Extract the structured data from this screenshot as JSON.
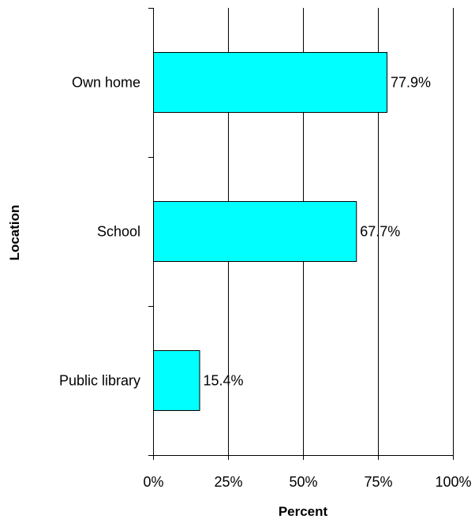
{
  "chart_data": {
    "type": "bar",
    "orientation": "horizontal",
    "categories": [
      "Own home",
      "School",
      "Public library"
    ],
    "values": [
      77.9,
      67.7,
      15.4
    ],
    "data_labels": [
      "77.9%",
      "67.7%",
      "15.4%"
    ],
    "xlabel": "Percent",
    "ylabel": "Location",
    "xlim": [
      0,
      100
    ],
    "x_ticks": [
      0,
      25,
      50,
      75,
      100
    ],
    "x_tick_labels": [
      "0%",
      "25%",
      "50%",
      "75%",
      "100%"
    ],
    "grid": "vertical",
    "legend": "none",
    "colors": {
      "bar_fill": "#00FFFF",
      "bar_stroke": "#000000",
      "grid": "#000000"
    }
  }
}
